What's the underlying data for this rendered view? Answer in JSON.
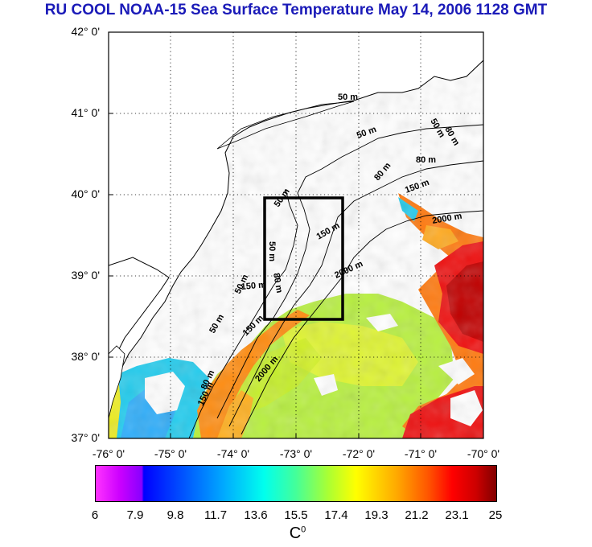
{
  "title": "RU COOL  NOAA-15 Sea Surface Temperature May 14, 2006 1128 GMT",
  "map": {
    "lat_labels": [
      "42° 0'",
      "41° 0'",
      "40° 0'",
      "39° 0'",
      "38° 0'",
      "37° 0'"
    ],
    "lon_labels": [
      "-76° 0'",
      "-75° 0'",
      "-74° 0'",
      "-73° 0'",
      "-72° 0'",
      "-71° 0'",
      "-70° 0'"
    ],
    "lat_range": [
      37,
      42
    ],
    "lon_range": [
      -76,
      -70
    ],
    "study_box": {
      "lon": [
        -73.5,
        -72.5
      ],
      "lat": [
        38.5,
        40.0
      ]
    },
    "isobath_labels": [
      "50 m",
      "50 m",
      "80 m",
      "50 m",
      "80 m",
      "80 m",
      "150 m",
      "2000 m",
      "150 m",
      "2000 m",
      "50 m",
      "50 m",
      "80 m",
      "50 m",
      "150 m",
      "2000 m",
      "80 m",
      "150 m"
    ]
  },
  "colorbar": {
    "ticks": [
      "6",
      "7.9",
      "9.8",
      "11.7",
      "13.6",
      "15.5",
      "17.4",
      "19.3",
      "21.2",
      "23.1",
      "25"
    ],
    "unit": "C",
    "unit_sup": "0",
    "range": [
      6,
      25
    ]
  },
  "colors": {
    "title": "#1a1ab8",
    "land": "#ffffff",
    "box": "#000000"
  }
}
